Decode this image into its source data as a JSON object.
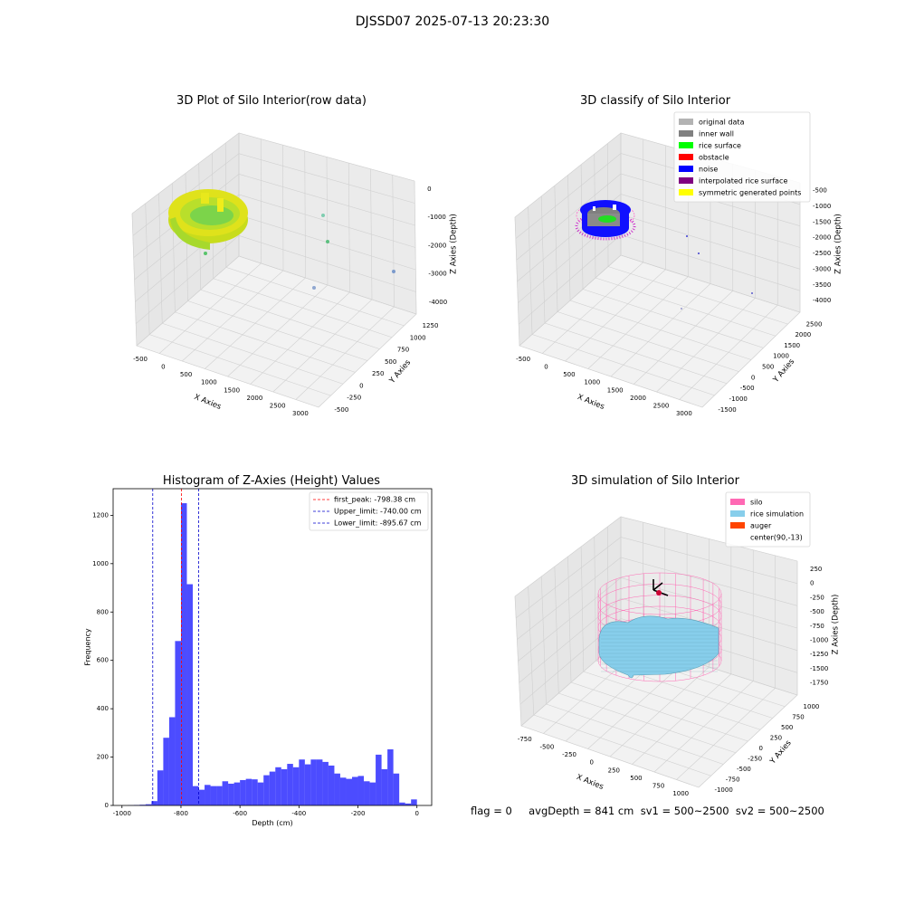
{
  "suptitle": "DJSSD07 2025-07-13 20:23:30",
  "footer": "flag = 0     avgDepth = 841 cm  sv1 = 500~2500  sv2 = 500~2500",
  "chart_data": [
    {
      "type": "scatter3d",
      "title": "3D Plot of Silo Interior(row data)",
      "xlabel": "X Axies",
      "ylabel": "Y Axies",
      "zlabel": "Z Axies (Depth)",
      "x_ticks": [
        "-500",
        "0",
        "500",
        "1000",
        "1500",
        "2000",
        "2500",
        "3000"
      ],
      "y_ticks": [
        "-500",
        "-250",
        "0",
        "250",
        "500",
        "750",
        "1000",
        "1250"
      ],
      "z_ticks": [
        "0",
        "-1000",
        "-2000",
        "-3000",
        "-4000"
      ]
    },
    {
      "type": "scatter3d",
      "title": "3D classify of Silo Interior",
      "xlabel": "X Axies",
      "ylabel": "Y Axies",
      "zlabel": "Z Axies (Depth)",
      "x_ticks": [
        "-500",
        "0",
        "500",
        "1000",
        "1500",
        "2000",
        "2500",
        "3000"
      ],
      "y_ticks": [
        "-1500",
        "-1000",
        "-500",
        "0",
        "500",
        "1000",
        "1500",
        "2000",
        "2500"
      ],
      "z_ticks": [
        "-500",
        "-1000",
        "-1500",
        "-2000",
        "-2500",
        "-3000",
        "-3500",
        "-4000"
      ],
      "legend": [
        {
          "label": "original data",
          "color": "#b3b3b3"
        },
        {
          "label": "inner wall",
          "color": "#808080"
        },
        {
          "label": "rice surface",
          "color": "#00ff00"
        },
        {
          "label": "obstacle",
          "color": "#ff0000"
        },
        {
          "label": "noise",
          "color": "#0000ff"
        },
        {
          "label": "interpolated rice surface",
          "color": "#800080"
        },
        {
          "label": "symmetric generated points",
          "color": "#ffff00"
        }
      ],
      "legend_position": "top-right"
    },
    {
      "type": "bar",
      "title": "Histogram of Z-Axies (Height) Values",
      "xlabel": "Depth (cm)",
      "ylabel": "Frequency",
      "xlim": [
        -1000,
        0
      ],
      "ylim": [
        0,
        1300
      ],
      "x_ticks": [
        -1000,
        -800,
        -600,
        -400,
        -200,
        0
      ],
      "y_ticks": [
        0,
        200,
        400,
        600,
        800,
        1000,
        1200
      ],
      "bar_color": "#0000ff",
      "bin_start": -980,
      "bin_width": 20,
      "values": [
        1,
        2,
        3,
        5,
        18,
        145,
        280,
        365,
        680,
        1250,
        915,
        80,
        65,
        85,
        80,
        80,
        100,
        90,
        95,
        105,
        110,
        108,
        95,
        125,
        140,
        158,
        150,
        172,
        158,
        190,
        170,
        190,
        190,
        180,
        165,
        132,
        115,
        110,
        118,
        122,
        100,
        95,
        210,
        150,
        232,
        132,
        12,
        8,
        25
      ],
      "lines": [
        {
          "label": "first_peak: -798.38 cm",
          "x": -798.38,
          "color": "#ff0000"
        },
        {
          "label": "Upper_limit: -740.00 cm",
          "x": -740.0,
          "color": "#0000cc"
        },
        {
          "label": "Lower_limit: -895.67 cm",
          "x": -895.67,
          "color": "#0000cc"
        }
      ],
      "legend_position": "top-right"
    },
    {
      "type": "surface3d",
      "title": "3D simulation of Silo Interior",
      "xlabel": "X Axies",
      "ylabel": "Y Axies",
      "zlabel": "Z Axies (Depth)",
      "x_ticks": [
        "-750",
        "-500",
        "-250",
        "0",
        "250",
        "500",
        "750",
        "1000"
      ],
      "y_ticks": [
        "-1000",
        "-750",
        "-500",
        "-250",
        "0",
        "250",
        "500",
        "750",
        "1000"
      ],
      "z_ticks": [
        "250",
        "0",
        "-250",
        "-500",
        "-750",
        "-1000",
        "-1250",
        "-1500",
        "-1750"
      ],
      "legend": [
        {
          "label": "silo",
          "color": "#ff69b4"
        },
        {
          "label": "rice simulation",
          "color": "#87ceeb"
        },
        {
          "label": "auger",
          "color": "#ff4500"
        },
        {
          "label": "center(90,-13)",
          "color": "#ffffff"
        }
      ],
      "legend_position": "top-right"
    }
  ]
}
